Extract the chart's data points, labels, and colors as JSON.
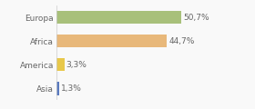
{
  "categories": [
    "Europa",
    "Africa",
    "America",
    "Asia"
  ],
  "values": [
    50.7,
    44.7,
    3.3,
    1.3
  ],
  "labels": [
    "50,7%",
    "44,7%",
    "3,3%",
    "1,3%"
  ],
  "bar_colors": [
    "#a8c07a",
    "#e8b87a",
    "#e8c84a",
    "#5a7abf"
  ],
  "background_color": "#f9f9f9",
  "xlim": [
    0,
    68
  ],
  "bar_height": 0.55,
  "label_fontsize": 6.5,
  "tick_fontsize": 6.5
}
